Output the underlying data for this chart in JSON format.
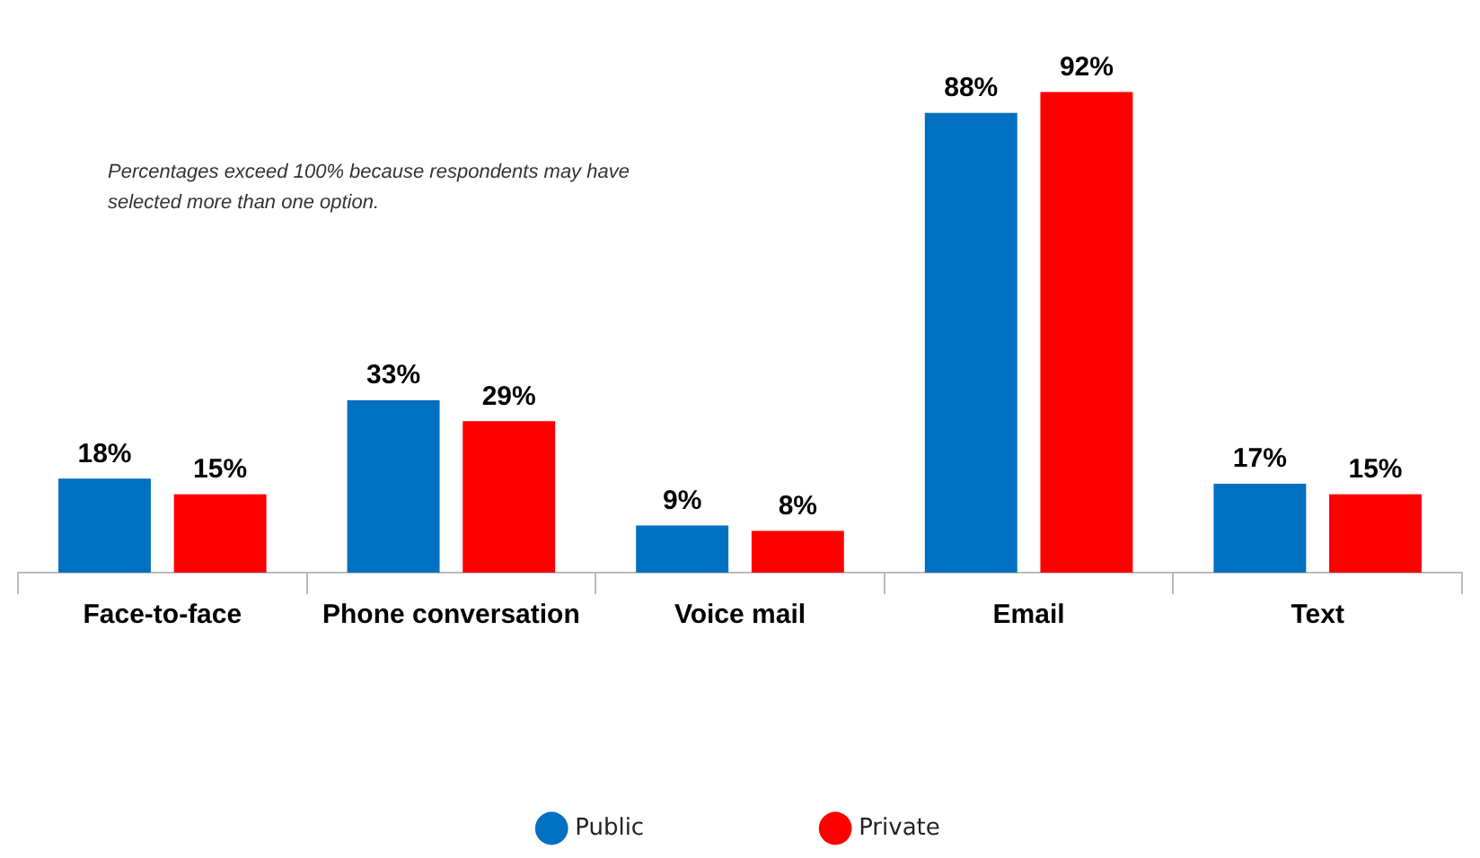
{
  "chart_data": {
    "type": "bar",
    "categories": [
      "Face-to-face",
      "Phone conversation",
      "Voice mail",
      "Email",
      "Text"
    ],
    "series": [
      {
        "name": "Public",
        "color": "#0070c0",
        "values": [
          18,
          33,
          9,
          88,
          17
        ],
        "value_labels": [
          "18%",
          "33%",
          "9%",
          "88%",
          "17%"
        ]
      },
      {
        "name": "Private",
        "color": "#ff0000",
        "values": [
          15,
          29,
          8,
          92,
          15
        ],
        "value_labels": [
          "15%",
          "29%",
          "8%",
          "92%",
          "15%"
        ]
      }
    ],
    "annotations": [
      "Percentages exceed 100% because respondents may have selected more than one option."
    ],
    "legend": "bottom"
  }
}
